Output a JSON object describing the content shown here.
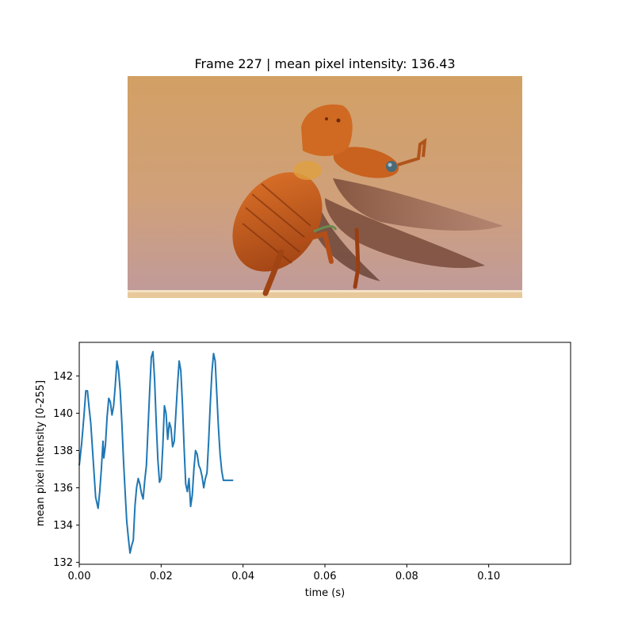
{
  "frame_title": "Frame 227 | mean pixel intensity: 136.43",
  "photo": {
    "subject": "beetle-in-flight",
    "colors": {
      "bg_top": "#d2a064",
      "bg_bottom": "#bf9a9c",
      "body": "#c8621e",
      "wing": "#8a5a48",
      "ledge": "#e8c89a"
    }
  },
  "chart_data": {
    "type": "line",
    "xlabel": "time (s)",
    "ylabel": "mean pixel intensity [0-255]",
    "xlim": [
      0.0,
      0.12
    ],
    "ylim": [
      131.9,
      143.8
    ],
    "xticks": [
      0.0,
      0.02,
      0.04,
      0.06,
      0.08,
      0.1
    ],
    "xtick_labels": [
      "0.00",
      "0.02",
      "0.04",
      "0.06",
      "0.08",
      "0.10"
    ],
    "yticks": [
      132,
      134,
      136,
      138,
      140,
      142
    ],
    "ytick_labels": [
      "132",
      "134",
      "136",
      "138",
      "140",
      "142"
    ],
    "grid": false,
    "line_color": "#1f77b4",
    "series": [
      {
        "x": [
          0.0,
          0.0006,
          0.0012,
          0.0016,
          0.002,
          0.0024,
          0.0028,
          0.0034,
          0.004,
          0.0046,
          0.005,
          0.0054,
          0.0058,
          0.006,
          0.0064,
          0.0068,
          0.0072,
          0.0076,
          0.008,
          0.0084,
          0.0088,
          0.0092,
          0.0096,
          0.01,
          0.0104,
          0.0108,
          0.0112,
          0.0116,
          0.012,
          0.0124,
          0.0128,
          0.0132,
          0.0136,
          0.014,
          0.0144,
          0.0148,
          0.0152,
          0.0156,
          0.016,
          0.0164,
          0.0168,
          0.0172,
          0.0176,
          0.018,
          0.0184,
          0.0188,
          0.0192,
          0.0196,
          0.02,
          0.0204,
          0.0208,
          0.0212,
          0.0216,
          0.022,
          0.0224,
          0.0228,
          0.0232,
          0.0236,
          0.024,
          0.0244,
          0.0248,
          0.0252,
          0.0256,
          0.026,
          0.0264,
          0.0268,
          0.0272,
          0.0276,
          0.028,
          0.0284,
          0.0288,
          0.0292,
          0.0296,
          0.03,
          0.0304,
          0.0308,
          0.0312,
          0.0316,
          0.032,
          0.0324,
          0.0328,
          0.0332,
          0.0336,
          0.034,
          0.0344,
          0.0348,
          0.0352,
          0.0356,
          0.036,
          0.0364,
          0.0368,
          0.0372,
          0.0376
        ],
        "values": [
          137.2,
          138.4,
          140.0,
          141.2,
          141.2,
          140.3,
          139.5,
          137.5,
          135.5,
          134.9,
          135.8,
          137.0,
          138.5,
          137.6,
          138.3,
          139.8,
          140.8,
          140.6,
          139.9,
          140.4,
          141.5,
          142.8,
          142.3,
          141.2,
          139.5,
          137.5,
          135.8,
          134.2,
          133.3,
          132.5,
          132.9,
          133.2,
          135.0,
          136.0,
          136.5,
          136.2,
          135.7,
          135.4,
          136.4,
          137.2,
          139.2,
          141.2,
          143.0,
          143.3,
          141.8,
          139.5,
          137.5,
          136.3,
          136.5,
          138.2,
          140.4,
          140.0,
          138.6,
          139.5,
          139.2,
          138.2,
          138.5,
          140.0,
          141.5,
          142.8,
          142.3,
          140.5,
          138.2,
          136.2,
          135.8,
          136.5,
          135.0,
          135.6,
          137.0,
          138.0,
          137.8,
          137.2,
          137.0,
          136.6,
          136.0,
          136.5,
          136.8,
          138.5,
          140.5,
          142.2,
          143.2,
          142.8,
          141.0,
          139.2,
          137.8,
          136.9,
          136.4,
          136.4,
          136.4,
          136.4,
          136.4,
          136.4,
          136.4
        ]
      }
    ]
  }
}
